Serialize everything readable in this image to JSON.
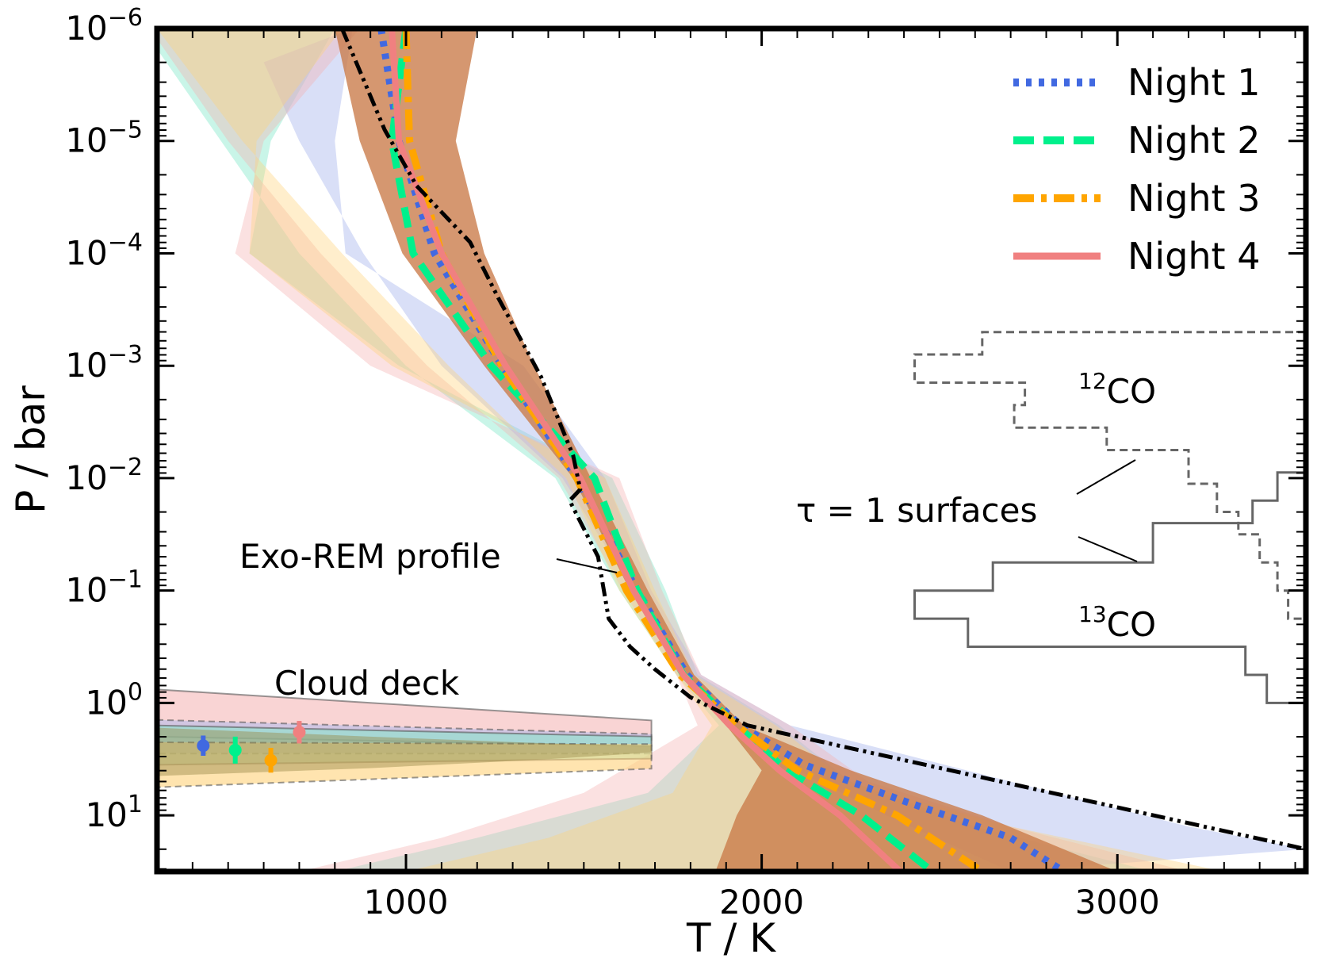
{
  "chart_data": {
    "type": "line",
    "xlabel": "T / K",
    "ylabel": "P / bar",
    "xlim": [
      300,
      3530
    ],
    "ylim_log10": [
      -6,
      1.5
    ],
    "yscale": "log",
    "x_ticks": [
      {
        "value": 1000,
        "label": "1000"
      },
      {
        "value": 2000,
        "label": "2000"
      },
      {
        "value": 3000,
        "label": "3000"
      }
    ],
    "y_ticks": [
      {
        "log": -6,
        "base": "10",
        "exp": "−6"
      },
      {
        "log": -5,
        "base": "10",
        "exp": "−5"
      },
      {
        "log": -4,
        "base": "10",
        "exp": "−4"
      },
      {
        "log": -3,
        "base": "10",
        "exp": "−3"
      },
      {
        "log": -2,
        "base": "10",
        "exp": "−2"
      },
      {
        "log": -1,
        "base": "10",
        "exp": "−1"
      },
      {
        "log": 0,
        "base": "10",
        "exp": "0"
      },
      {
        "log": 1,
        "base": "10",
        "exp": "1"
      }
    ],
    "colors": {
      "night1": "#4169e1",
      "night2": "#00f08c",
      "night3": "#ffa500",
      "night4": "#f08080",
      "exorem": "#000000",
      "tau": "#666666"
    },
    "series": [
      {
        "key": "night1",
        "name": "Night 1",
        "style": "dotted",
        "points": [
          [
            930,
            -6
          ],
          [
            980,
            -5
          ],
          [
            1080,
            -4
          ],
          [
            1270,
            -3
          ],
          [
            1480,
            -2
          ],
          [
            1650,
            -1
          ],
          [
            1790,
            -0.25
          ],
          [
            1940,
            0.2
          ],
          [
            2120,
            0.55
          ],
          [
            2380,
            0.85
          ],
          [
            2700,
            1.2
          ],
          [
            2850,
            1.5
          ]
        ]
      },
      {
        "key": "night2",
        "name": "Night 2",
        "style": "dashed",
        "points": [
          [
            1000,
            -6
          ],
          [
            960,
            -5
          ],
          [
            1020,
            -4
          ],
          [
            1240,
            -3
          ],
          [
            1530,
            -2
          ],
          [
            1650,
            -1
          ],
          [
            1780,
            -0.25
          ],
          [
            1930,
            0.2
          ],
          [
            2070,
            0.6
          ],
          [
            2280,
            1.0
          ],
          [
            2480,
            1.5
          ]
        ]
      },
      {
        "key": "night3",
        "name": "Night 3",
        "style": "dashdot",
        "points": [
          [
            1000,
            -6
          ],
          [
            1010,
            -5
          ],
          [
            1100,
            -4
          ],
          [
            1270,
            -3
          ],
          [
            1480,
            -2
          ],
          [
            1620,
            -1
          ],
          [
            1770,
            -0.25
          ],
          [
            1930,
            0.2
          ],
          [
            2100,
            0.6
          ],
          [
            2380,
            1.0
          ],
          [
            2620,
            1.5
          ]
        ]
      },
      {
        "key": "night4",
        "name": "Night 4",
        "style": "solid",
        "points": [
          [
            960,
            -6
          ],
          [
            980,
            -5
          ],
          [
            1100,
            -4
          ],
          [
            1280,
            -3
          ],
          [
            1490,
            -2
          ],
          [
            1640,
            -1
          ],
          [
            1780,
            -0.25
          ],
          [
            1910,
            0.2
          ],
          [
            2050,
            0.6
          ],
          [
            2220,
            1.0
          ],
          [
            2390,
            1.5
          ]
        ]
      },
      {
        "key": "exorem",
        "name": "Exo-REM profile",
        "style": "dashdotdot",
        "points": [
          [
            820,
            -6
          ],
          [
            940,
            -5.1
          ],
          [
            1030,
            -4.6
          ],
          [
            1180,
            -4.1
          ],
          [
            1260,
            -3.6
          ],
          [
            1380,
            -2.9
          ],
          [
            1470,
            -2.2
          ],
          [
            1490,
            -1.9
          ],
          [
            1460,
            -1.8
          ],
          [
            1540,
            -1.3
          ],
          [
            1570,
            -0.75
          ],
          [
            1630,
            -0.5
          ],
          [
            1700,
            -0.3
          ],
          [
            1800,
            -0.05
          ],
          [
            1960,
            0.2
          ],
          [
            3530,
            1.3
          ]
        ]
      }
    ],
    "bands": [
      {
        "key": "night2",
        "color": "#7ee8c8",
        "opacity": 0.42,
        "left": [
          [
            260,
            -6
          ],
          [
            480,
            -5
          ],
          [
            700,
            -4
          ],
          [
            1000,
            -3
          ],
          [
            1420,
            -2
          ],
          [
            1600,
            -1
          ],
          [
            1760,
            -0.25
          ],
          [
            1880,
            0.2
          ],
          [
            1680,
            0.8
          ],
          [
            1200,
            1.2
          ],
          [
            800,
            1.5
          ]
        ],
        "right": [
          [
            800,
            -6
          ],
          [
            620,
            -5
          ],
          [
            560,
            -4
          ],
          [
            980,
            -3
          ],
          [
            1580,
            -2
          ],
          [
            1730,
            -1
          ],
          [
            1820,
            -0.25
          ],
          [
            2050,
            0.2
          ],
          [
            2250,
            0.7
          ],
          [
            2600,
            1.1
          ],
          [
            3100,
            1.5
          ]
        ]
      },
      {
        "key": "night1",
        "color": "#aab8ee",
        "opacity": 0.45,
        "left": [
          [
            600,
            -5.7
          ],
          [
            700,
            -5
          ],
          [
            880,
            -4
          ],
          [
            1100,
            -3
          ],
          [
            1440,
            -2
          ],
          [
            1640,
            -1
          ],
          [
            1780,
            -0.25
          ],
          [
            1920,
            0.2
          ],
          [
            2100,
            0.6
          ],
          [
            2350,
            1.0
          ],
          [
            2700,
            1.5
          ]
        ],
        "right": [
          [
            850,
            -6
          ],
          [
            800,
            -5
          ],
          [
            830,
            -4
          ],
          [
            1330,
            -3
          ],
          [
            1560,
            -2
          ],
          [
            1690,
            -1
          ],
          [
            1830,
            -0.25
          ],
          [
            2080,
            0.2
          ],
          [
            2700,
            0.7
          ],
          [
            3200,
            1.1
          ],
          [
            3530,
            1.3
          ]
        ]
      },
      {
        "key": "night4",
        "color": "#f4b0b0",
        "opacity": 0.38,
        "left": [
          [
            280,
            -6
          ],
          [
            500,
            -5
          ],
          [
            760,
            -4
          ],
          [
            1060,
            -3
          ],
          [
            1430,
            -2
          ],
          [
            1610,
            -1
          ],
          [
            1760,
            -0.25
          ],
          [
            1820,
            0.2
          ],
          [
            1500,
            0.8
          ],
          [
            1100,
            1.2
          ],
          [
            700,
            1.5
          ]
        ],
        "right": [
          [
            870,
            -6
          ],
          [
            600,
            -5
          ],
          [
            520,
            -4
          ],
          [
            900,
            -3
          ],
          [
            1600,
            -2
          ],
          [
            1720,
            -1
          ],
          [
            1830,
            -0.25
          ],
          [
            2080,
            0.2
          ],
          [
            2300,
            0.7
          ],
          [
            2700,
            1.1
          ],
          [
            3200,
            1.5
          ]
        ]
      },
      {
        "key": "night3",
        "color": "#ffd27a",
        "opacity": 0.38,
        "left": [
          [
            300,
            -6
          ],
          [
            540,
            -5
          ],
          [
            820,
            -4
          ],
          [
            1120,
            -3
          ],
          [
            1450,
            -2
          ],
          [
            1600,
            -1
          ],
          [
            1760,
            -0.25
          ],
          [
            1860,
            0.2
          ],
          [
            1750,
            0.8
          ],
          [
            1400,
            1.2
          ],
          [
            1000,
            1.5
          ]
        ],
        "right": [
          [
            820,
            -6
          ],
          [
            580,
            -5
          ],
          [
            560,
            -4
          ],
          [
            960,
            -3
          ],
          [
            1560,
            -2
          ],
          [
            1700,
            -1
          ],
          [
            1810,
            -0.25
          ],
          [
            2040,
            0.2
          ],
          [
            2240,
            0.7
          ],
          [
            2700,
            1.1
          ],
          [
            3300,
            1.5
          ]
        ]
      },
      {
        "key": "center",
        "color": "#c97a48",
        "opacity": 0.78,
        "left": [
          [
            800,
            -6
          ],
          [
            870,
            -5
          ],
          [
            990,
            -4
          ],
          [
            1220,
            -3
          ],
          [
            1470,
            -2
          ],
          [
            1630,
            -1
          ],
          [
            1770,
            -0.25
          ],
          [
            1900,
            0.2
          ],
          [
            2000,
            0.6
          ],
          [
            1930,
            1.0
          ],
          [
            1870,
            1.5
          ]
        ],
        "right": [
          [
            1200,
            -6
          ],
          [
            1140,
            -5
          ],
          [
            1220,
            -4
          ],
          [
            1360,
            -3
          ],
          [
            1520,
            -2
          ],
          [
            1680,
            -1
          ],
          [
            1810,
            -0.25
          ],
          [
            1950,
            0.2
          ],
          [
            2250,
            0.6
          ],
          [
            2620,
            1.0
          ],
          [
            3000,
            1.5
          ]
        ]
      }
    ],
    "cloud_deck": {
      "label": "Cloud deck",
      "bands": [
        {
          "key": "night4",
          "color": "#f4b0b0",
          "opacity": 0.55,
          "top": -0.12,
          "bottom": 0.3
        },
        {
          "key": "night1",
          "color": "#aab8ee",
          "opacity": 0.5,
          "top": 0.15,
          "bottom": 0.45
        },
        {
          "key": "night2",
          "color": "#7ee8c8",
          "opacity": 0.5,
          "top": 0.2,
          "bottom": 0.55
        },
        {
          "key": "night3",
          "color": "#ffd27a",
          "opacity": 0.6,
          "top": 0.35,
          "bottom": 0.75
        }
      ],
      "center_fill": "#9a8a4a",
      "markers": [
        {
          "key": "night1",
          "t": 430,
          "logp": 0.38,
          "err": 0.09
        },
        {
          "key": "night2",
          "t": 520,
          "logp": 0.42,
          "err": 0.12
        },
        {
          "key": "night3",
          "t": 620,
          "logp": 0.51,
          "err": 0.11
        },
        {
          "key": "night4",
          "t": 700,
          "logp": 0.26,
          "err": 0.1
        }
      ]
    },
    "annotations": {
      "exorem_label": "Exo-REM profile",
      "tau_label": "τ = 1 surfaces",
      "co12_sup": "12",
      "co12_base": "CO",
      "co13_sup": "13",
      "co13_base": "CO"
    },
    "legend": {
      "position": "top-right",
      "entries": [
        {
          "key": "night1",
          "label": "Night 1",
          "style": "dotted"
        },
        {
          "key": "night2",
          "label": "Night 2",
          "style": "dashed"
        },
        {
          "key": "night3",
          "label": "Night 3",
          "style": "dashdot"
        },
        {
          "key": "night4",
          "label": "Night 4",
          "style": "solid"
        }
      ]
    }
  }
}
